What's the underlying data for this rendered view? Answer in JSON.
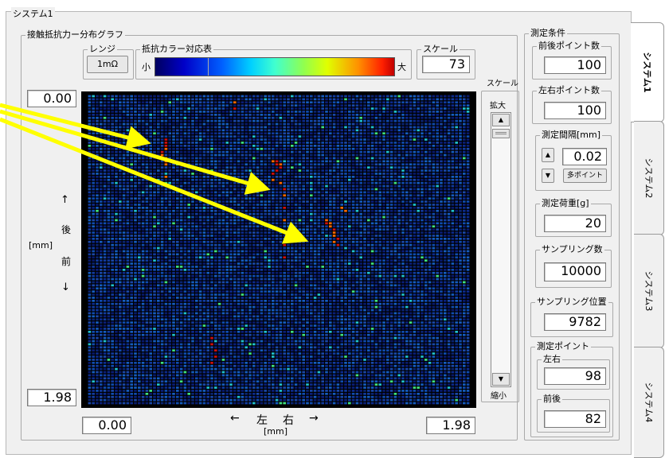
{
  "window": {
    "group_title": "システム1"
  },
  "graph": {
    "title": "接触抵抗力ー分布グラフ",
    "range_label": "レンジ",
    "range_value": "1mΩ",
    "colorbar_title": "抵抗カラー対応表",
    "colorbar_min": "小",
    "colorbar_max": "大",
    "scale_label": "スケール",
    "scale_value": "73",
    "y_top": "0.00",
    "y_bottom": "1.98",
    "x_left": "0.00",
    "x_right": "1.98",
    "y_axis": {
      "up_arrow": "↑",
      "back": "後",
      "unit": "[mm]",
      "front": "前",
      "down_arrow": "↓"
    },
    "x_axis": {
      "left_arrow": "←",
      "left": "左",
      "right": "右",
      "right_arrow": "→",
      "unit": "[mm]"
    }
  },
  "zoom": {
    "title": "スケール",
    "zoom_in": "拡大",
    "zoom_out": "縮小"
  },
  "conditions": {
    "title": "測定条件",
    "fb_points_label": "前後ポイント数",
    "fb_points_value": "100",
    "lr_points_label": "左右ポイント数",
    "lr_points_value": "100",
    "interval_label": "測定間隔[mm]",
    "interval_value": "0.02",
    "interval_button": "多ポイント",
    "load_label": "測定荷重[g]",
    "load_value": "20",
    "sampling_count_label": "サンプリング数",
    "sampling_count_value": "10000",
    "sampling_pos_label": "サンプリング位置",
    "sampling_pos_value": "9782",
    "point_label": "測定ポイント",
    "lr_label": "左右",
    "lr_value": "98",
    "fb_label": "前後",
    "fb_value": "82"
  },
  "tabs": [
    "システム1",
    "システム2",
    "システム3",
    "システム4"
  ],
  "colors": {
    "heatmap_bg": "#0b1e6e",
    "arrow": "#ffff00",
    "hot": "#d01010"
  }
}
